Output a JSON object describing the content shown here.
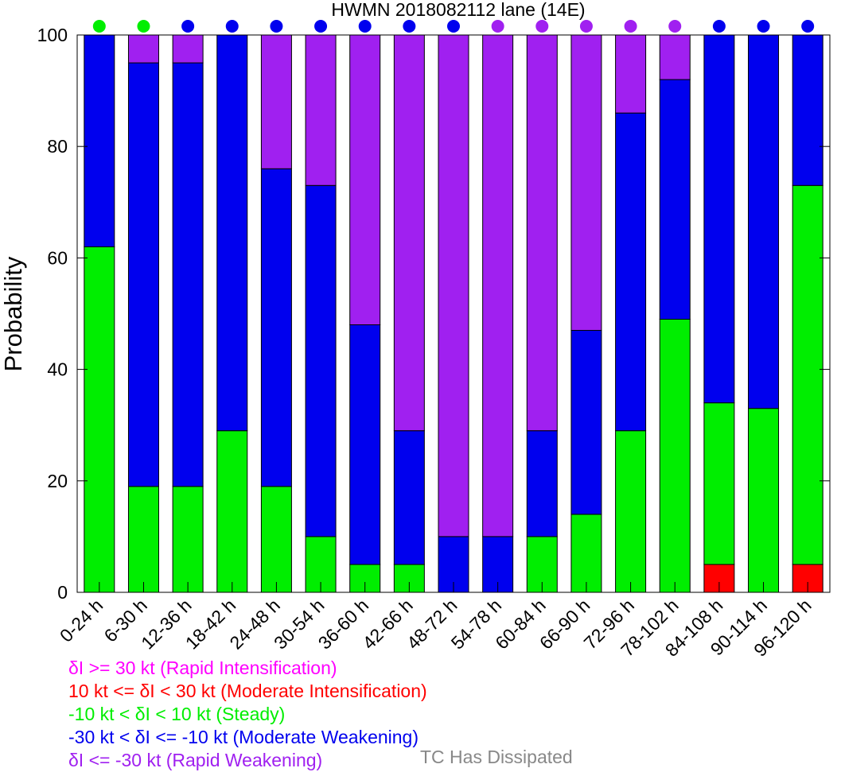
{
  "chart_data": {
    "type": "bar",
    "stacked": true,
    "title": "HWMN 2018082112 lane (14E)",
    "ylabel": "Probability",
    "xlabel": "",
    "ylim": [
      0,
      100
    ],
    "yticks": [
      0,
      20,
      40,
      60,
      80,
      100
    ],
    "categories": [
      "0-24 h",
      "6-30 h",
      "12-36 h",
      "18-42 h",
      "24-48 h",
      "30-54 h",
      "36-60 h",
      "42-66 h",
      "48-72 h",
      "54-78 h",
      "60-84 h",
      "66-90 h",
      "72-96 h",
      "78-102 h",
      "84-108 h",
      "90-114 h",
      "96-120 h"
    ],
    "series": [
      {
        "key": "moderate_intensification",
        "color": "#ff0000",
        "values": [
          0,
          0,
          0,
          0,
          0,
          0,
          0,
          0,
          0,
          0,
          0,
          0,
          0,
          0,
          5,
          0,
          5
        ]
      },
      {
        "key": "steady",
        "color": "#00ee00",
        "values": [
          62,
          19,
          19,
          29,
          19,
          10,
          5,
          5,
          0,
          0,
          10,
          14,
          29,
          49,
          29,
          33,
          68
        ]
      },
      {
        "key": "moderate_weakening",
        "color": "#0000ee",
        "values": [
          38,
          76,
          76,
          71,
          57,
          63,
          43,
          24,
          10,
          10,
          19,
          33,
          57,
          43,
          66,
          67,
          27
        ]
      },
      {
        "key": "rapid_weakening",
        "color": "#a020f0",
        "values": [
          0,
          5,
          5,
          0,
          24,
          27,
          52,
          71,
          90,
          90,
          71,
          53,
          14,
          8,
          0,
          0,
          0
        ]
      }
    ],
    "top_markers": [
      "#00ee00",
      "#00ee00",
      "#0000ee",
      "#0000ee",
      "#0000ee",
      "#0000ee",
      "#0000ee",
      "#0000ee",
      "#0000ee",
      "#a020f0",
      "#a020f0",
      "#a020f0",
      "#a020f0",
      "#a020f0",
      "#0000ee",
      "#0000ee",
      "#0000ee"
    ],
    "legend": [
      {
        "text": "δI >= 30 kt (Rapid Intensification)",
        "color": "#ff00ff"
      },
      {
        "text": "10 kt <= δI < 30 kt (Moderate Intensification)",
        "color": "#ff0000"
      },
      {
        "text": "-10 kt < δI < 10 kt (Steady)",
        "color": "#00ee00"
      },
      {
        "text": "-30 kt < δI <= -10 kt (Moderate Weakening)",
        "color": "#0000ee"
      },
      {
        "text": "δI <= -30 kt (Rapid Weakening)",
        "color": "#a020f0"
      }
    ],
    "dissipated_label": {
      "text": "TC Has Dissipated",
      "color": "#888888"
    }
  }
}
